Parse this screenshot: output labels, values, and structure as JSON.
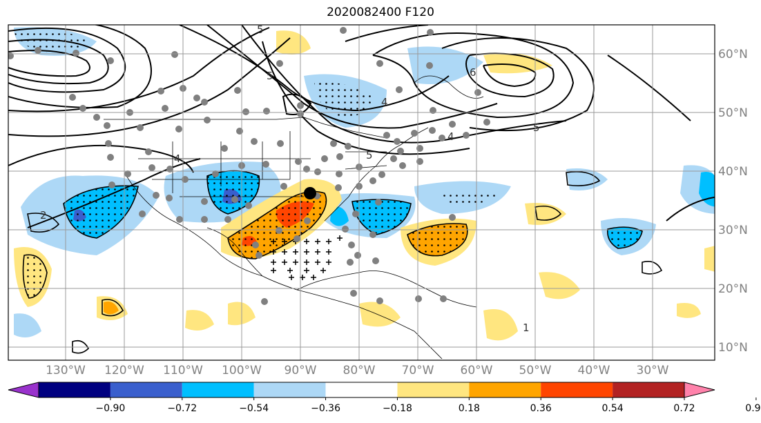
{
  "title": "2020082400 F120",
  "lon_labels": [
    "130°W",
    "120°W",
    "110°W",
    "100°W",
    "90°W",
    "80°W",
    "70°W",
    "60°W",
    "50°W",
    "40°W",
    "30°W"
  ],
  "lat_labels": [
    "60°N",
    "50°N",
    "40°N",
    "30°N",
    "20°N",
    "10°N"
  ],
  "colorbar": {
    "labels": [
      "−0.90",
      "−0.72",
      "−0.54",
      "−0.36",
      "−0.18",
      "0.18",
      "0.36",
      "0.54",
      "0.72",
      "0.90"
    ],
    "colors": [
      "#9932cc",
      "#000080",
      "#3a5fcd",
      "#00bfff",
      "#add8f6",
      "#ffffff",
      "#ffe680",
      "#ffa500",
      "#ff4500",
      "#b22222",
      "#ff82ab"
    ]
  },
  "contour_labels": [
    "5",
    "5",
    "4",
    "6",
    "5",
    "4",
    "5",
    "4",
    "2",
    "1"
  ],
  "storm_marker": "black-dot",
  "point_marker": "gray-dot",
  "significance_markers": [
    "stipple-dots",
    "plus-signs"
  ]
}
